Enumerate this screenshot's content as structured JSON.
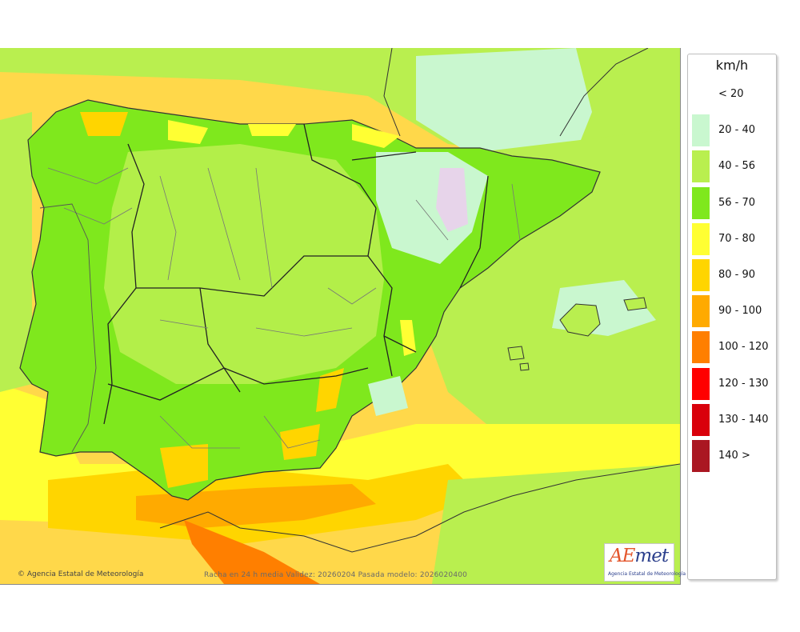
{
  "legend": {
    "unit": "km/h",
    "items": [
      {
        "label": "< 20",
        "color": "#ffffff"
      },
      {
        "label": "20 - 40",
        "color": "#c9f7cf"
      },
      {
        "label": "40 - 56",
        "color": "#b9ef4f"
      },
      {
        "label": "56 - 70",
        "color": "#7fe81d"
      },
      {
        "label": "70 - 80",
        "color": "#ffff33"
      },
      {
        "label": "80 - 90",
        "color": "#ffd500"
      },
      {
        "label": "90 - 100",
        "color": "#ffaa00"
      },
      {
        "label": "100 - 120",
        "color": "#ff7f00"
      },
      {
        "label": "120 - 130",
        "color": "#ff0000"
      },
      {
        "label": "130 - 140",
        "color": "#d9000b"
      },
      {
        "label": "140 >",
        "color": "#aa1722"
      }
    ]
  },
  "map": {
    "credit": "Agencia Estatal de Meteorología",
    "footer": "Racha en 24 h media  Validez: 20260204 Pasada modelo: 2026020400",
    "logo": {
      "wordmark_accent": "AE",
      "wordmark_rest": "met",
      "subtitle": "Agencia Estatal de Meteorología"
    }
  }
}
